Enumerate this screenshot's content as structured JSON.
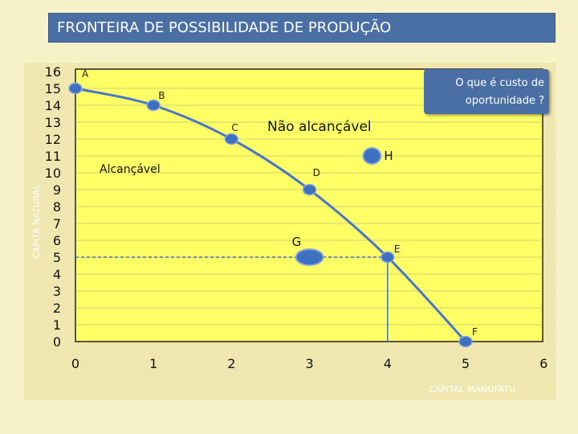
{
  "slide": {
    "title": "FRONTEIRA DE POSSIBILIDADE DE PRODUÇÃO",
    "callout": {
      "line1": "O que é custo de",
      "line2": "oportunidade ?"
    },
    "region_unreachable": "Não alcançável",
    "region_reachable": "Alcançável",
    "x_axis_name": "CAPITAL MANUFATU",
    "y_axis_name": "CAPITA NATURAL"
  },
  "colors": {
    "plot_fill": "#ffff66",
    "curve": "#4a76c8",
    "title_bar": "#4a6fa5",
    "point_fill": "#3f6fbf"
  },
  "chart_data": {
    "type": "line",
    "title": "FRONTEIRA DE POSSIBILIDADE DE PRODUÇÃO",
    "xlabel": "CAPITAL MANUFATU",
    "ylabel": "CAPITA NATURAL",
    "x_ticks": [
      "0",
      "1",
      "2",
      "3",
      "4",
      "5",
      "6"
    ],
    "y_ticks": [
      "16",
      "15",
      "14",
      "13",
      "12",
      "11",
      "10",
      "9",
      "8",
      "7",
      "6",
      "5",
      "4",
      "3",
      "2",
      "1",
      "0"
    ],
    "xlim": [
      0,
      6
    ],
    "ylim": [
      0,
      16
    ],
    "grid": true,
    "frontier": [
      {
        "label": "A",
        "x": 0,
        "y": 15
      },
      {
        "label": "B",
        "x": 1,
        "y": 14
      },
      {
        "label": "C",
        "x": 2,
        "y": 12
      },
      {
        "label": "D",
        "x": 3,
        "y": 9
      },
      {
        "label": "E",
        "x": 4,
        "y": 5
      },
      {
        "label": "F",
        "x": 5,
        "y": 0
      }
    ],
    "other_points": [
      {
        "label": "G",
        "x": 3,
        "y": 5
      },
      {
        "label": "H",
        "x": 3.8,
        "y": 11
      }
    ],
    "reference_lines": {
      "x": 4,
      "y": 5
    }
  }
}
